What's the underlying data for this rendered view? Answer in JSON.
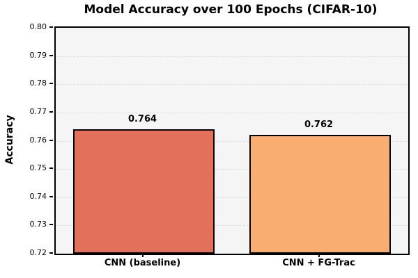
{
  "chart_data": {
    "type": "bar",
    "title": "Model Accuracy over 100 Epochs (CIFAR-10)",
    "xlabel": "",
    "ylabel": "Accuracy",
    "categories": [
      "CNN (baseline)",
      "CNN + FG-Trac"
    ],
    "values": [
      0.764,
      0.762
    ],
    "value_labels": [
      "0.764",
      "0.762"
    ],
    "bar_colors": [
      "#e2705a",
      "#f9ad70"
    ],
    "bar_edge_color": "#000000",
    "ylim": [
      0.72,
      0.8
    ],
    "ytick_step": 0.01,
    "ytick_labels": [
      "0.80",
      "0.79",
      "0.78",
      "0.77",
      "0.76",
      "0.75",
      "0.74",
      "0.73",
      "0.72"
    ],
    "grid": "horizontal-dashed",
    "legend": "none",
    "plot_background_color": "#f5f5f5",
    "grid_color": "#dcdcdc",
    "figure_background_color": "#ffffff"
  }
}
